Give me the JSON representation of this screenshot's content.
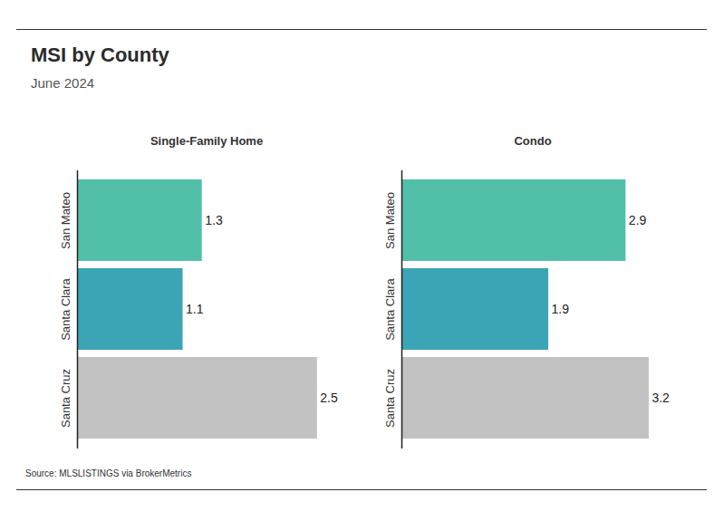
{
  "title": "MSI by County",
  "subtitle": "June 2024",
  "source": "Source:  MLSLISTINGS via BrokerMetrics",
  "chart_data": [
    {
      "type": "bar",
      "title": "Single-Family Home",
      "orientation": "horizontal",
      "categories": [
        "San Mateo",
        "Santa Clara",
        "Santa Cruz"
      ],
      "values": [
        1.3,
        1.1,
        2.5
      ],
      "colors": [
        "#52bfa9",
        "#3ba5b5",
        "#c2c2c2"
      ],
      "xlim": [
        0,
        2.7
      ],
      "data_labels": true,
      "tick_labels": "y"
    },
    {
      "type": "bar",
      "title": "Condo",
      "orientation": "horizontal",
      "categories": [
        "San Mateo",
        "Santa Clara",
        "Santa Cruz"
      ],
      "values": [
        2.9,
        1.9,
        3.2
      ],
      "colors": [
        "#52bfa9",
        "#3ba5b5",
        "#c2c2c2"
      ],
      "xlim": [
        0,
        3.4
      ],
      "data_labels": true,
      "tick_labels": "y"
    }
  ]
}
